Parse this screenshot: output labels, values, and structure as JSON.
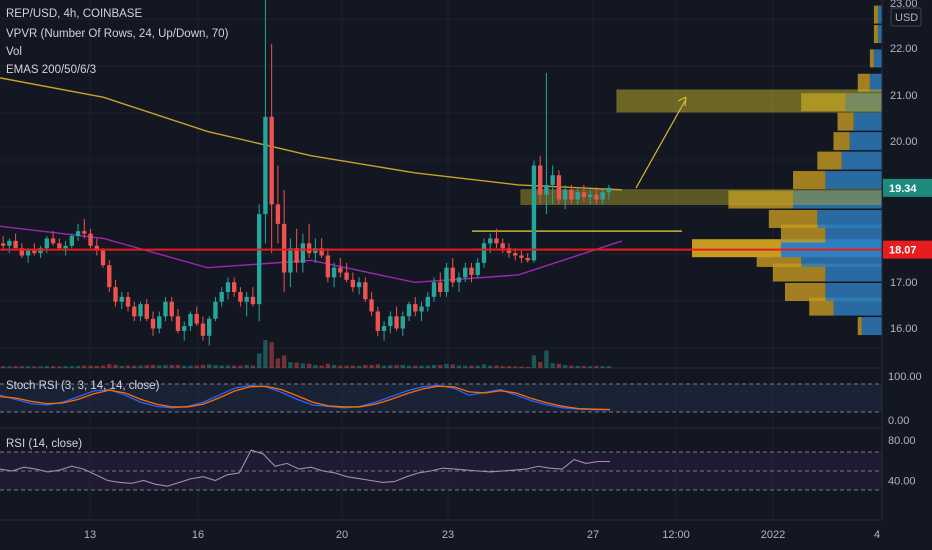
{
  "header": {
    "symbol_line": "REP/USD, 4h, COINBASE",
    "indicators": [
      "VPVR (Number Of Rows, 24, Up/Down, 70)",
      "Vol",
      "EMAS 200/50/6/3"
    ]
  },
  "currency": "USD",
  "price_axis": {
    "ticks": [
      "23.00",
      "22.00",
      "21.00",
      "20.00",
      "19.00",
      "17.00",
      "16.00"
    ],
    "last_price_tag": "19.34",
    "line_tag": "18.07"
  },
  "panes": {
    "stoch": {
      "label": "Stoch RSI (3, 3, 14, 14, close)",
      "ticks": [
        "100.00",
        "0.00"
      ]
    },
    "rsi": {
      "label": "RSI (14, close)",
      "ticks": [
        "80.00",
        "40.00"
      ]
    }
  },
  "time_axis": {
    "ticks": [
      "13",
      "16",
      "20",
      "23",
      "27",
      "12:00",
      "2022",
      "4"
    ]
  },
  "colors": {
    "background": "#131722",
    "up": "#26a69a",
    "down": "#ef5350",
    "ema200": "#c9a227",
    "ema50": "#9c27b0",
    "red_line": "#e81c1c",
    "vp_up": "#2f7fc1",
    "vp_down": "#c79a20"
  },
  "chart_data": [
    {
      "type": "candlestick",
      "title": "REP/USD, 4h, COINBASE",
      "ylim": [
        15.7,
        23.2
      ],
      "x_ticks": [
        "13",
        "16",
        "20",
        "23",
        "27",
        "12:00",
        "2022",
        "4"
      ],
      "candles_ohlc": [
        [
          18.2,
          18.35,
          18.05,
          18.15
        ],
        [
          18.15,
          18.3,
          18.0,
          18.25
        ],
        [
          18.25,
          18.4,
          18.1,
          18.1
        ],
        [
          18.1,
          18.2,
          17.9,
          17.95
        ],
        [
          17.95,
          18.1,
          17.8,
          18.05
        ],
        [
          18.05,
          18.2,
          17.95,
          18.0
        ],
        [
          18.0,
          18.15,
          17.9,
          18.1
        ],
        [
          18.1,
          18.35,
          18.0,
          18.3
        ],
        [
          18.3,
          18.45,
          18.15,
          18.2
        ],
        [
          18.2,
          18.3,
          18.05,
          18.1
        ],
        [
          18.1,
          18.25,
          17.95,
          18.15
        ],
        [
          18.15,
          18.4,
          18.1,
          18.35
        ],
        [
          18.35,
          18.6,
          18.25,
          18.45
        ],
        [
          18.45,
          18.7,
          18.3,
          18.4
        ],
        [
          18.4,
          18.5,
          18.1,
          18.15
        ],
        [
          18.15,
          18.3,
          17.95,
          18.05
        ],
        [
          18.05,
          18.1,
          17.7,
          17.75
        ],
        [
          17.75,
          17.85,
          17.2,
          17.3
        ],
        [
          17.3,
          17.45,
          16.9,
          17.0
        ],
        [
          17.0,
          17.2,
          16.85,
          17.1
        ],
        [
          17.1,
          17.2,
          16.8,
          16.9
        ],
        [
          16.9,
          17.0,
          16.6,
          16.7
        ],
        [
          16.7,
          17.0,
          16.6,
          16.95
        ],
        [
          16.95,
          17.05,
          16.6,
          16.65
        ],
        [
          16.65,
          16.8,
          16.3,
          16.45
        ],
        [
          16.45,
          16.8,
          16.35,
          16.7
        ],
        [
          16.7,
          17.1,
          16.6,
          17.0
        ],
        [
          17.0,
          17.1,
          16.6,
          16.7
        ],
        [
          16.7,
          16.85,
          16.35,
          16.4
        ],
        [
          16.4,
          16.6,
          16.2,
          16.5
        ],
        [
          16.5,
          16.8,
          16.4,
          16.75
        ],
        [
          16.75,
          16.9,
          16.5,
          16.55
        ],
        [
          16.55,
          16.7,
          16.2,
          16.3
        ],
        [
          16.3,
          16.7,
          16.1,
          16.65
        ],
        [
          16.65,
          17.1,
          16.6,
          17.0
        ],
        [
          17.0,
          17.3,
          16.9,
          17.2
        ],
        [
          17.2,
          17.5,
          17.05,
          17.4
        ],
        [
          17.4,
          17.5,
          17.1,
          17.2
        ],
        [
          17.2,
          17.3,
          16.9,
          17.0
        ],
        [
          17.0,
          17.2,
          16.7,
          17.1
        ],
        [
          17.1,
          17.3,
          16.9,
          16.95
        ],
        [
          16.95,
          19.0,
          16.6,
          18.8
        ],
        [
          18.8,
          23.6,
          18.2,
          20.8
        ],
        [
          20.8,
          22.3,
          18.0,
          19.0
        ],
        [
          19.0,
          19.8,
          18.2,
          18.6
        ],
        [
          18.6,
          19.3,
          17.2,
          17.6
        ],
        [
          17.6,
          18.3,
          17.3,
          18.1
        ],
        [
          18.1,
          18.5,
          17.6,
          17.8
        ],
        [
          17.8,
          18.4,
          17.6,
          18.2
        ],
        [
          18.2,
          18.6,
          17.9,
          18.0
        ],
        [
          18.0,
          18.3,
          17.8,
          18.1
        ],
        [
          18.1,
          18.3,
          17.9,
          17.95
        ],
        [
          17.95,
          18.1,
          17.4,
          17.5
        ],
        [
          17.5,
          17.8,
          17.3,
          17.7
        ],
        [
          17.7,
          17.9,
          17.5,
          17.6
        ],
        [
          17.6,
          17.8,
          17.4,
          17.45
        ],
        [
          17.45,
          17.6,
          17.2,
          17.3
        ],
        [
          17.3,
          17.5,
          17.15,
          17.4
        ],
        [
          17.4,
          17.5,
          17.0,
          17.05
        ],
        [
          17.05,
          17.2,
          16.7,
          16.8
        ],
        [
          16.8,
          16.9,
          16.3,
          16.4
        ],
        [
          16.4,
          16.6,
          16.2,
          16.5
        ],
        [
          16.5,
          16.8,
          16.35,
          16.7
        ],
        [
          16.7,
          16.9,
          16.4,
          16.45
        ],
        [
          16.45,
          16.8,
          16.3,
          16.7
        ],
        [
          16.7,
          17.0,
          16.6,
          16.95
        ],
        [
          16.95,
          17.1,
          16.7,
          16.8
        ],
        [
          16.8,
          17.0,
          16.6,
          16.9
        ],
        [
          16.9,
          17.2,
          16.8,
          17.1
        ],
        [
          17.1,
          17.5,
          17.0,
          17.4
        ],
        [
          17.4,
          17.6,
          17.1,
          17.2
        ],
        [
          17.2,
          17.8,
          17.1,
          17.7
        ],
        [
          17.7,
          17.9,
          17.3,
          17.4
        ],
        [
          17.4,
          17.6,
          17.2,
          17.5
        ],
        [
          17.5,
          17.8,
          17.4,
          17.7
        ],
        [
          17.7,
          17.8,
          17.4,
          17.55
        ],
        [
          17.55,
          17.9,
          17.5,
          17.8
        ],
        [
          17.8,
          18.3,
          17.7,
          18.2
        ],
        [
          18.2,
          18.4,
          18.0,
          18.3
        ],
        [
          18.3,
          18.5,
          18.1,
          18.2
        ],
        [
          18.2,
          18.3,
          18.0,
          18.1
        ],
        [
          18.1,
          18.2,
          17.9,
          18.0
        ],
        [
          18.0,
          18.1,
          17.85,
          17.95
        ],
        [
          17.95,
          18.05,
          17.8,
          17.9
        ],
        [
          17.9,
          18.0,
          17.8,
          17.85
        ],
        [
          17.85,
          19.9,
          17.8,
          19.8
        ],
        [
          19.8,
          20.0,
          19.0,
          19.2
        ],
        [
          19.2,
          21.7,
          18.8,
          19.4
        ],
        [
          19.4,
          19.8,
          19.0,
          19.6
        ],
        [
          19.6,
          19.7,
          19.0,
          19.1
        ],
        [
          19.1,
          19.4,
          18.9,
          19.3
        ],
        [
          19.3,
          19.4,
          19.0,
          19.1
        ],
        [
          19.1,
          19.35,
          19.0,
          19.25
        ],
        [
          19.25,
          19.4,
          19.05,
          19.15
        ],
        [
          19.15,
          19.3,
          19.0,
          19.2
        ],
        [
          19.2,
          19.35,
          19.0,
          19.1
        ],
        [
          19.1,
          19.3,
          19.0,
          19.25
        ],
        [
          19.25,
          19.4,
          19.1,
          19.34
        ]
      ],
      "series": [
        {
          "name": "EMA 200",
          "values": [
            21.6,
            21.2,
            20.5,
            20.0,
            19.65,
            19.4,
            19.3
          ]
        },
        {
          "name": "EMA 50",
          "values": [
            18.55,
            18.3,
            17.7,
            17.85,
            17.4,
            17.55,
            18.25
          ]
        }
      ],
      "annotations": {
        "horizontal_line": 18.07,
        "box_lower": [
          19.0,
          19.3
        ],
        "box_upper": [
          20.9,
          21.35
        ],
        "range_high": 18.45,
        "range_low": 18.07
      }
    },
    {
      "type": "bar",
      "title": "VPVR (Number Of Rows, 24, Up/Down, 70)",
      "price_levels": [
        16.5,
        16.9,
        17.2,
        17.6,
        17.9,
        18.1,
        18.4,
        18.7,
        19.1,
        19.5,
        19.9,
        20.3,
        20.7,
        21.1,
        21.5,
        22.0,
        22.5,
        22.9
      ],
      "series": [
        {
          "name": "Up",
          "values": [
            5,
            12,
            14,
            14,
            20,
            25,
            14,
            16,
            22,
            14,
            10,
            8,
            7,
            9,
            3,
            2,
            1,
            1
          ]
        },
        {
          "name": "Down",
          "values": [
            1,
            6,
            10,
            13,
            11,
            22,
            11,
            12,
            16,
            8,
            6,
            4,
            4,
            11,
            3,
            1,
            1,
            1
          ]
        }
      ]
    },
    {
      "type": "line",
      "title": "Stoch RSI (3, 3, 14, 14, close)",
      "ylim": [
        0,
        100
      ],
      "series": [
        {
          "name": "K",
          "values": [
            60,
            45,
            30,
            25,
            35,
            55,
            75,
            80,
            60,
            35,
            20,
            15,
            20,
            35,
            60,
            85,
            95,
            90,
            70,
            45,
            25,
            20,
            15,
            20,
            35,
            55,
            75,
            90,
            95,
            85,
            60,
            70,
            80,
            60,
            40,
            25,
            15,
            10,
            8,
            8
          ]
        },
        {
          "name": "D",
          "values": [
            55,
            50,
            38,
            30,
            32,
            45,
            65,
            78,
            68,
            45,
            28,
            18,
            18,
            28,
            50,
            75,
            90,
            92,
            80,
            58,
            35,
            22,
            18,
            18,
            28,
            45,
            65,
            82,
            92,
            90,
            72,
            68,
            76,
            68,
            48,
            32,
            20,
            12,
            10,
            9
          ]
        }
      ]
    },
    {
      "type": "line",
      "title": "RSI (14, close)",
      "ylim": [
        25,
        85
      ],
      "series": [
        {
          "name": "RSI",
          "values": [
            52,
            50,
            54,
            52,
            49,
            51,
            55,
            52,
            46,
            40,
            38,
            37,
            40,
            36,
            34,
            38,
            42,
            44,
            40,
            46,
            48,
            72,
            68,
            55,
            58,
            52,
            54,
            50,
            48,
            44,
            42,
            40,
            38,
            39,
            44,
            48,
            50,
            53,
            52,
            51,
            50,
            49,
            50,
            51,
            52,
            55,
            53,
            52,
            62,
            58,
            60,
            60
          ]
        }
      ]
    }
  ]
}
